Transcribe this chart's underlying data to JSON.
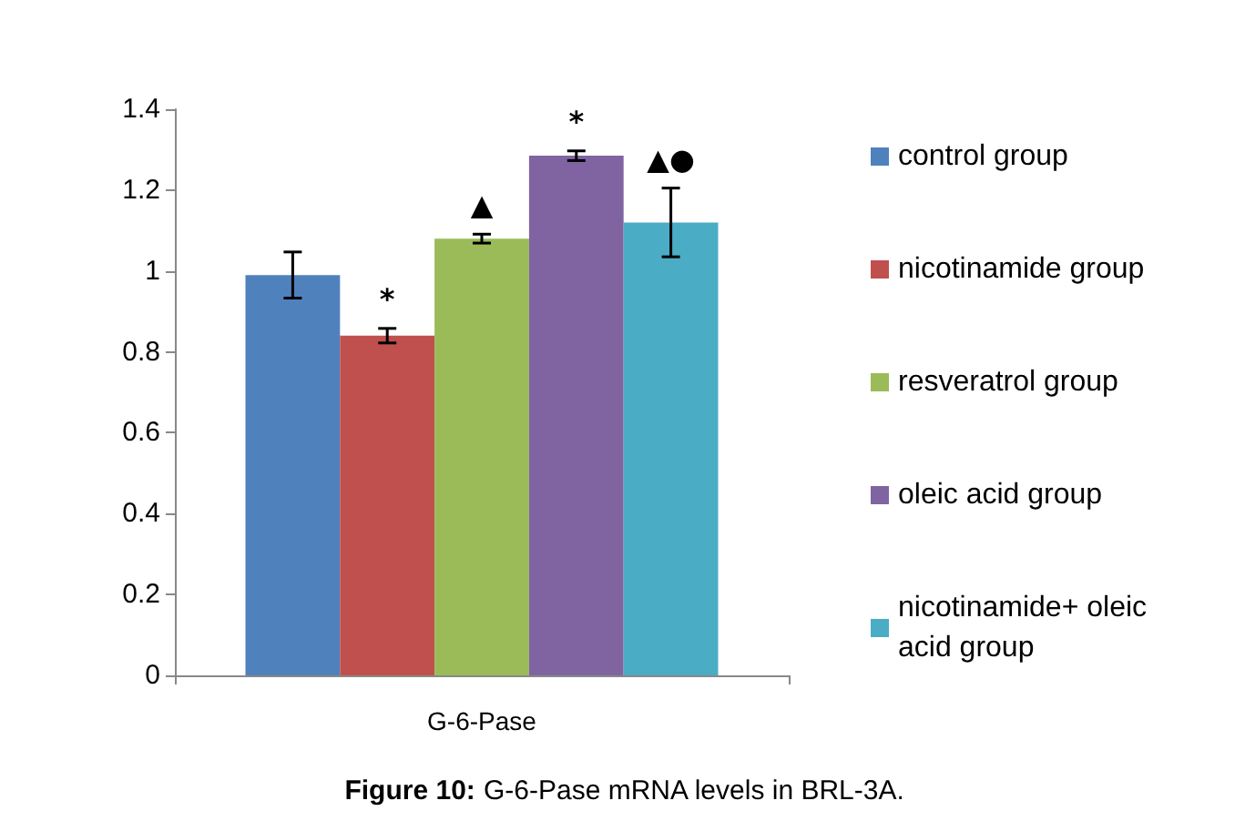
{
  "chart_data": {
    "type": "bar",
    "title": "Figure 10: G-6-Pase mRNA levels in BRL-3A.",
    "categories": [
      "G-6-Pase"
    ],
    "series": [
      {
        "name": "control group",
        "color": "#4f81bd",
        "values": [
          0.99
        ],
        "errors": [
          0.057
        ]
      },
      {
        "name": "nicotinamide group",
        "color": "#c0504d",
        "values": [
          0.84
        ],
        "errors": [
          0.018
        ]
      },
      {
        "name": "resveratrol group",
        "color": "#9bbb59",
        "values": [
          1.08
        ],
        "errors": [
          0.011
        ]
      },
      {
        "name": "oleic acid group",
        "color": "#8064a2",
        "values": [
          1.285
        ],
        "errors": [
          0.012
        ]
      },
      {
        "name": "nicotinamide+ oleic acid group",
        "color": "#4bacc6",
        "values": [
          1.12
        ],
        "errors": [
          0.085
        ]
      }
    ],
    "annotations": [
      "*",
      "▲",
      "*",
      "▲●"
    ],
    "ylim": [
      0,
      1.4
    ],
    "yticks": [
      0,
      0.2,
      0.4,
      0.6,
      0.8,
      1,
      1.2,
      1.4
    ],
    "grid": false,
    "legend": "right"
  }
}
